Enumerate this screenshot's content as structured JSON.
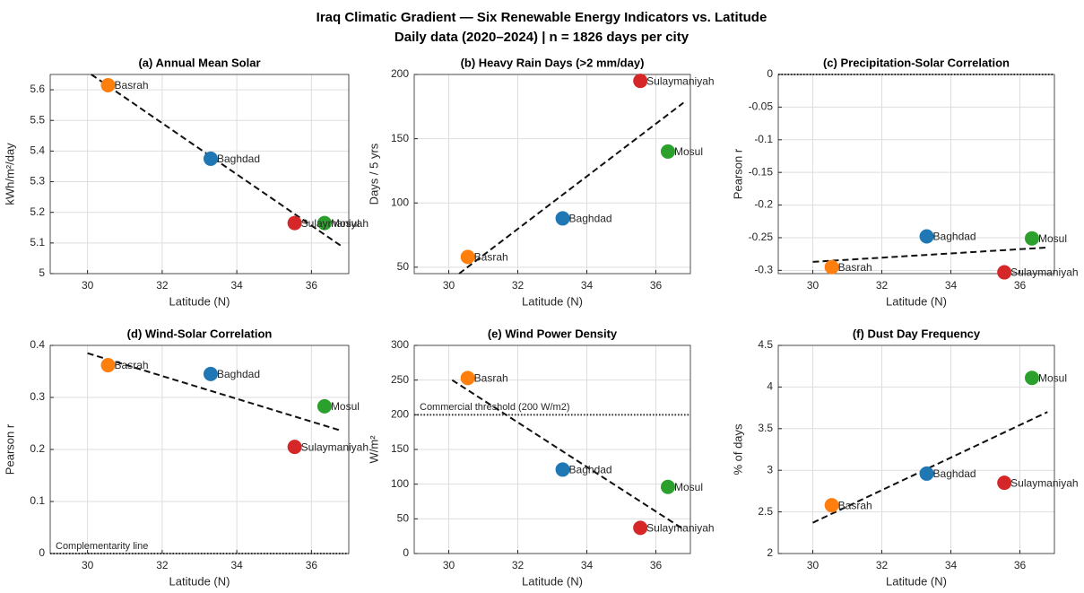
{
  "title": "Iraq Climatic Gradient — Six Renewable Energy Indicators vs. Latitude",
  "subtitle": "Daily data (2020–2024)  |  n = 1826 days per city",
  "chart_data": [
    {
      "type": "scatter",
      "title": "(a) Annual Mean Solar",
      "xlabel": "Latitude (N)",
      "ylabel": "kWh/m²/day",
      "labels": [
        "Basrah",
        "Baghdad",
        "Mosul",
        "Sulaymaniyah"
      ],
      "colors": [
        "#ff7f0e",
        "#1f77b4",
        "#2ca02c",
        "#d62728"
      ],
      "x": [
        30.55,
        33.3,
        36.35,
        35.55
      ],
      "values": [
        5.615,
        5.375,
        5.165,
        5.165
      ],
      "trend": {
        "x": [
          30.1,
          36.8
        ],
        "y": [
          5.65,
          5.09
        ]
      },
      "xlim": [
        29,
        37
      ],
      "xticks": [
        30,
        32,
        34,
        36
      ],
      "ylim": [
        5,
        5.65
      ],
      "yticks": [
        5,
        5.1,
        5.2,
        5.3,
        5.4,
        5.5,
        5.6
      ],
      "grid": true
    },
    {
      "type": "scatter",
      "title": "(b) Heavy Rain Days (>2 mm/day)",
      "xlabel": "Latitude (N)",
      "ylabel": "Days / 5 yrs",
      "labels": [
        "Basrah",
        "Baghdad",
        "Mosul",
        "Sulaymaniyah"
      ],
      "colors": [
        "#ff7f0e",
        "#1f77b4",
        "#2ca02c",
        "#d62728"
      ],
      "x": [
        30.55,
        33.3,
        36.35,
        35.55
      ],
      "values": [
        58,
        88,
        140,
        195
      ],
      "trend": {
        "x": [
          30.3,
          36.8
        ],
        "y": [
          45,
          178
        ]
      },
      "xlim": [
        29,
        37
      ],
      "xticks": [
        30,
        32,
        34,
        36
      ],
      "ylim": [
        45,
        200
      ],
      "yticks": [
        50,
        100,
        150,
        200
      ],
      "grid": true
    },
    {
      "type": "scatter",
      "title": "(c) Precipitation-Solar Correlation",
      "xlabel": "Latitude (N)",
      "ylabel": "Pearson r",
      "labels": [
        "Basrah",
        "Baghdad",
        "Mosul",
        "Sulaymaniyah"
      ],
      "colors": [
        "#ff7f0e",
        "#1f77b4",
        "#2ca02c",
        "#d62728"
      ],
      "x": [
        30.55,
        33.3,
        36.35,
        35.55
      ],
      "values": [
        -0.295,
        -0.248,
        -0.251,
        -0.303
      ],
      "trend": {
        "x": [
          30,
          36.8
        ],
        "y": [
          -0.287,
          -0.265
        ]
      },
      "refline": {
        "value": 0
      },
      "xlim": [
        29,
        37
      ],
      "xticks": [
        30,
        32,
        34,
        36
      ],
      "ylim": [
        -0.305,
        0
      ],
      "yticks": [
        -0.3,
        -0.25,
        -0.2,
        -0.15,
        -0.1,
        -0.05,
        0
      ],
      "grid": true
    },
    {
      "type": "scatter",
      "title": "(d) Wind-Solar Correlation",
      "xlabel": "Latitude (N)",
      "ylabel": "Pearson r",
      "labels": [
        "Basrah",
        "Baghdad",
        "Mosul",
        "Sulaymaniyah"
      ],
      "colors": [
        "#ff7f0e",
        "#1f77b4",
        "#2ca02c",
        "#d62728"
      ],
      "x": [
        30.55,
        33.3,
        36.35,
        35.55
      ],
      "values": [
        0.362,
        0.345,
        0.283,
        0.205
      ],
      "trend": {
        "x": [
          30,
          36.8
        ],
        "y": [
          0.385,
          0.236
        ]
      },
      "refline": {
        "value": 0,
        "label": "Complementarity line"
      },
      "xlim": [
        29,
        37
      ],
      "xticks": [
        30,
        32,
        34,
        36
      ],
      "ylim": [
        0,
        0.4
      ],
      "yticks": [
        0,
        0.1,
        0.2,
        0.3,
        0.4
      ],
      "grid": true
    },
    {
      "type": "scatter",
      "title": "(e) Wind Power Density",
      "xlabel": "Latitude (N)",
      "ylabel": "W/m²",
      "labels": [
        "Basrah",
        "Baghdad",
        "Mosul",
        "Sulaymaniyah"
      ],
      "colors": [
        "#ff7f0e",
        "#1f77b4",
        "#2ca02c",
        "#d62728"
      ],
      "x": [
        30.55,
        33.3,
        36.35,
        35.55
      ],
      "values": [
        253,
        121,
        96,
        37
      ],
      "trend": {
        "x": [
          30.1,
          36.8
        ],
        "y": [
          250,
          35
        ]
      },
      "refline": {
        "value": 200,
        "label": "Commercial threshold (200 W/m2)"
      },
      "xlim": [
        29,
        37
      ],
      "xticks": [
        30,
        32,
        34,
        36
      ],
      "ylim": [
        0,
        300
      ],
      "yticks": [
        0,
        50,
        100,
        150,
        200,
        250,
        300
      ],
      "grid": true
    },
    {
      "type": "scatter",
      "title": "(f) Dust Day Frequency",
      "xlabel": "Latitude (N)",
      "ylabel": "% of days",
      "labels": [
        "Basrah",
        "Baghdad",
        "Mosul",
        "Sulaymaniyah"
      ],
      "colors": [
        "#ff7f0e",
        "#1f77b4",
        "#2ca02c",
        "#d62728"
      ],
      "x": [
        30.55,
        33.3,
        36.35,
        35.55
      ],
      "values": [
        2.58,
        2.96,
        4.11,
        2.85
      ],
      "trend": {
        "x": [
          30,
          36.8
        ],
        "y": [
          2.37,
          3.7
        ]
      },
      "xlim": [
        29,
        37
      ],
      "xticks": [
        30,
        32,
        34,
        36
      ],
      "ylim": [
        2,
        4.5
      ],
      "yticks": [
        2,
        2.5,
        3,
        3.5,
        4,
        4.5
      ],
      "grid": true
    }
  ]
}
